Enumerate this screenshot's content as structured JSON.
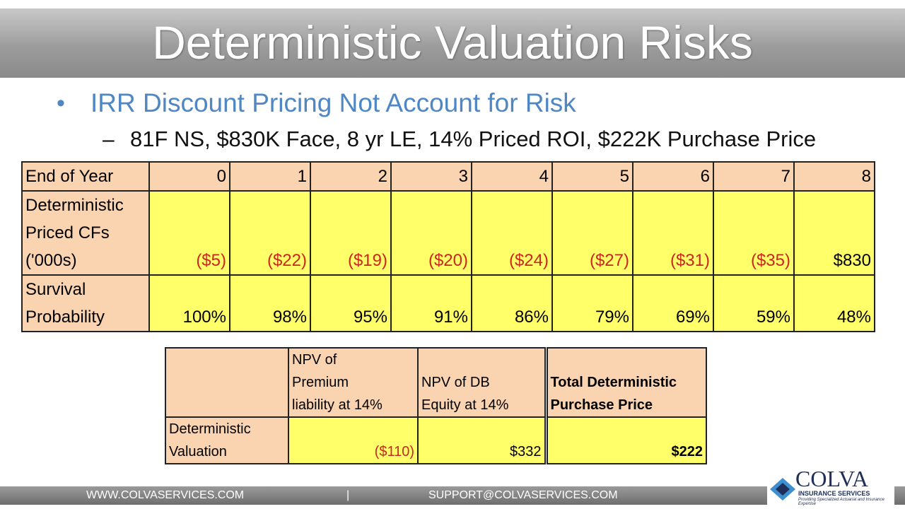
{
  "header": {
    "title": "Deterministic Valuation Risks"
  },
  "bullet": "IRR Discount Pricing Not Account for Risk",
  "sub_bullet": "81F NS, $830K Face, 8 yr LE, 14% Priced ROI, $222K Purchase Price",
  "table": {
    "rows": [
      [
        "End of Year",
        "0",
        "1",
        "2",
        "3",
        "4",
        "5",
        "6",
        "7",
        "8"
      ],
      [
        "Deterministic\nPriced CFs\n('000s)",
        "($5)",
        "($22)",
        "($19)",
        "($20)",
        "($24)",
        "($27)",
        "($31)",
        "($35)",
        "$830"
      ],
      [
        "Survival\nProbability",
        "100%",
        "98%",
        "95%",
        "91%",
        "86%",
        "79%",
        "69%",
        "59%",
        "48%"
      ]
    ]
  },
  "summary_table": {
    "rows": [
      [
        "",
        "NPV of\nPremium\nliability at 14%",
        "NPV of DB\nEquity at 14%",
        "Total Deterministic\nPurchase Price"
      ],
      [
        "Deterministic\nValuation",
        "($110)",
        "$332",
        "$222"
      ]
    ]
  },
  "footer": {
    "website": "WWW.COLVASERVICES.COM",
    "separator": "|",
    "email": "SUPPORT@COLVASERVICES.COM"
  },
  "logo": {
    "name": "COLVA",
    "subtitle": "INSURANCE SERVICES",
    "tagline": "Providing Specialized Actuarial and Insurance Expertise"
  }
}
